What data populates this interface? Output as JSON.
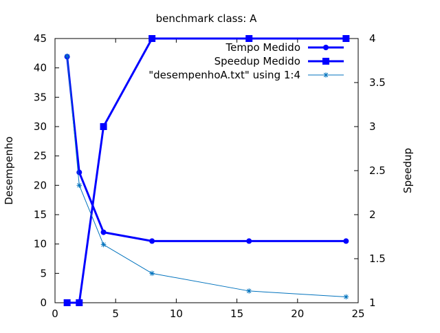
{
  "chart_data": {
    "type": "line",
    "title": "benchmark class: A",
    "xlabel": "",
    "ylabel": "Desempenho",
    "y2label": "Speedup",
    "xlim": [
      0,
      25
    ],
    "ylim": [
      0,
      45
    ],
    "y2lim": [
      1,
      4
    ],
    "xticks": [
      "0",
      "5",
      "10",
      "15",
      "20",
      "25"
    ],
    "yticks": [
      "0",
      "5",
      "10",
      "15",
      "20",
      "25",
      "30",
      "35",
      "40",
      "45"
    ],
    "y2ticks": [
      "1",
      "1.5",
      "2",
      "2.5",
      "3",
      "3.5",
      "4"
    ],
    "grid": false,
    "legend_position": "top-right",
    "series": [
      {
        "name": "Tempo Medido",
        "axis": "y",
        "marker": "circle",
        "color": "#0000ff",
        "x": [
          1,
          2,
          4,
          8,
          16,
          24
        ],
        "y": [
          41.9,
          22.2,
          12.0,
          10.5,
          10.5,
          10.5
        ]
      },
      {
        "name": "Speedup Medido",
        "axis": "y2",
        "marker": "square",
        "color": "#0000ff",
        "x": [
          1,
          2,
          4,
          8,
          16,
          24
        ],
        "y": [
          1.0,
          1.0,
          3.0,
          4.0,
          4.0,
          4.0
        ]
      },
      {
        "name": "\"desempenhoA.txt\" using 1:4",
        "axis": "y",
        "marker": "star",
        "color": "#0072bd",
        "x": [
          1,
          2,
          4,
          8,
          16,
          24
        ],
        "y": [
          42.0,
          20.0,
          9.9,
          5.0,
          2.0,
          1.0
        ]
      }
    ]
  }
}
